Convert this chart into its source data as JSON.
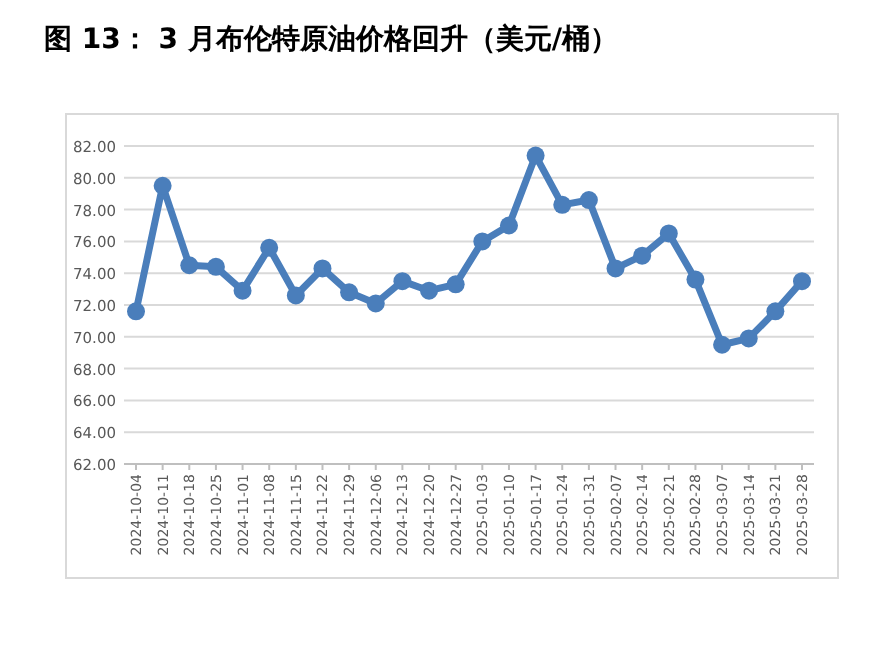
{
  "chart_data": {
    "type": "line",
    "title": "图 13：  3 月布伦特原油价格回升（美元/桶）",
    "categories": [
      "2024-10-04",
      "2024-10-11",
      "2024-10-18",
      "2024-10-25",
      "2024-11-01",
      "2024-11-08",
      "2024-11-15",
      "2024-11-22",
      "2024-11-29",
      "2024-12-06",
      "2024-12-13",
      "2024-12-20",
      "2024-12-27",
      "2025-01-03",
      "2025-01-10",
      "2025-01-17",
      "2025-01-24",
      "2025-01-31",
      "2025-02-07",
      "2025-02-14",
      "2025-02-21",
      "2025-02-28",
      "2025-03-07",
      "2025-03-14",
      "2025-03-21",
      "2025-03-28"
    ],
    "series": [
      {
        "color": "#4a7ebb",
        "values": [
          71.6,
          79.5,
          74.5,
          74.4,
          72.9,
          75.6,
          72.6,
          74.3,
          72.8,
          72.1,
          73.5,
          72.9,
          73.3,
          76.0,
          77.0,
          81.4,
          78.3,
          78.6,
          74.3,
          75.1,
          76.5,
          73.6,
          69.5,
          69.9,
          71.6,
          73.5
        ]
      }
    ],
    "ylim": [
      62,
      82
    ],
    "yticks": [
      {
        "value": 62,
        "label": "62.00"
      },
      {
        "value": 64,
        "label": "64.00"
      },
      {
        "value": 66,
        "label": "66.00"
      },
      {
        "value": 68,
        "label": "68.00"
      },
      {
        "value": 70,
        "label": "70.00"
      },
      {
        "value": 72,
        "label": "72.00"
      },
      {
        "value": 74,
        "label": "74.00"
      },
      {
        "value": 76,
        "label": "76.00"
      },
      {
        "value": 78,
        "label": "78.00"
      },
      {
        "value": 80,
        "label": "80.00"
      },
      {
        "value": 82,
        "label": "82.00"
      }
    ],
    "grid": "y",
    "marker": "circle",
    "line_style": "solid"
  }
}
